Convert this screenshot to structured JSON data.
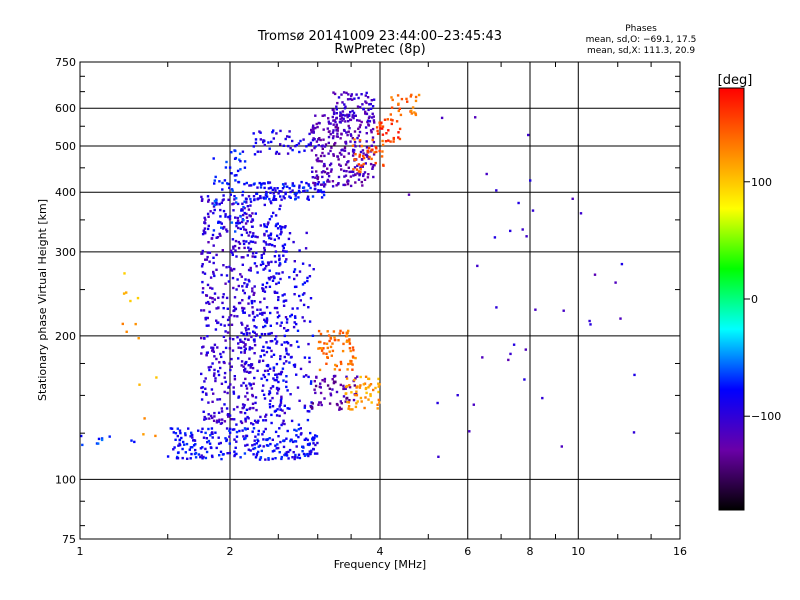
{
  "chart_data": {
    "type": "scatter",
    "title": "Tromsø 20141009 23:44:00–23:45:43",
    "subtitle": "RwPretec (8p)",
    "xlabel": "Frequency [MHz]",
    "ylabel": "Stationary phase Virtual Height [km]",
    "x_scale": "log",
    "y_scale": "log",
    "xlim": [
      1,
      16
    ],
    "ylim": [
      75,
      750
    ],
    "x_ticks": [
      1,
      2,
      4,
      6,
      8,
      10,
      16
    ],
    "x_tick_labels": [
      "1",
      "2",
      "4",
      "6",
      "8",
      "10",
      "16"
    ],
    "y_ticks": [
      75,
      100,
      200,
      300,
      400,
      500,
      600,
      750
    ],
    "y_tick_labels": [
      "75",
      "100",
      "200",
      "300",
      "400",
      "500",
      "600",
      "750"
    ],
    "grid": true,
    "stats": {
      "header": "Phases",
      "line_o": "mean, sd,O: −69.1, 17.5",
      "line_x": "mean, sd,X: 111.3, 20.9"
    },
    "colorbar": {
      "label": "[deg]",
      "range": [
        -180,
        180
      ],
      "ticks": [
        100,
        0,
        -100
      ],
      "tick_labels": [
        "100",
        "0",
        "−100"
      ],
      "stops": [
        "#000000",
        "#6a00a8",
        "#0000ff",
        "#00ffff",
        "#00ff00",
        "#ffff00",
        "#ff8000",
        "#ff0000"
      ]
    },
    "clusters": [
      {
        "f": [
          1.5,
          3.0
        ],
        "h": [
          110,
          128
        ],
        "phase": -82,
        "count": 260
      },
      {
        "f": [
          1.75,
          2.25
        ],
        "h": [
          130,
          395
        ],
        "phase": -102,
        "count": 420
      },
      {
        "f": [
          2.1,
          2.6
        ],
        "h": [
          130,
          390
        ],
        "phase": -95,
        "count": 240
      },
      {
        "f": [
          2.3,
          2.95
        ],
        "h": [
          130,
          345
        ],
        "phase": -88,
        "count": 200
      },
      {
        "f": [
          1.85,
          2.15
        ],
        "h": [
          330,
          490
        ],
        "phase": -72,
        "count": 70
      },
      {
        "f": [
          2.15,
          3.1
        ],
        "h": [
          385,
          420
        ],
        "phase": -82,
        "count": 110
      },
      {
        "f": [
          2.2,
          3.0
        ],
        "h": [
          480,
          540
        ],
        "phase": -92,
        "count": 50
      },
      {
        "f": [
          2.9,
          3.9
        ],
        "h": [
          410,
          580
        ],
        "phase": -118,
        "count": 260
      },
      {
        "f": [
          3.2,
          3.9
        ],
        "h": [
          560,
          650
        ],
        "phase": -108,
        "count": 80
      },
      {
        "f": [
          3.5,
          4.1
        ],
        "h": [
          440,
          520
        ],
        "phase": 148,
        "count": 40
      },
      {
        "f": [
          3.9,
          4.4
        ],
        "h": [
          510,
          570
        ],
        "phase": 158,
        "count": 30
      },
      {
        "f": [
          4.2,
          4.8
        ],
        "h": [
          580,
          640
        ],
        "phase": 140,
        "count": 25
      },
      {
        "f": [
          3.0,
          3.6
        ],
        "h": [
          168,
          205
        ],
        "phase": 136,
        "count": 70
      },
      {
        "f": [
          2.9,
          3.6
        ],
        "h": [
          140,
          165
        ],
        "phase": -125,
        "count": 65
      },
      {
        "f": [
          3.4,
          4.0
        ],
        "h": [
          140,
          165
        ],
        "phase": 118,
        "count": 55
      },
      {
        "f": [
          1.2,
          1.45
        ],
        "h": [
          115,
          300
        ],
        "phase": 112,
        "count": 14
      },
      {
        "f": [
          4.0,
          13.0
        ],
        "h": [
          110,
          620
        ],
        "phase": -108,
        "count": 40
      },
      {
        "f": [
          1.0,
          1.3
        ],
        "h": [
          118,
          124
        ],
        "phase": -62,
        "count": 10
      }
    ]
  }
}
